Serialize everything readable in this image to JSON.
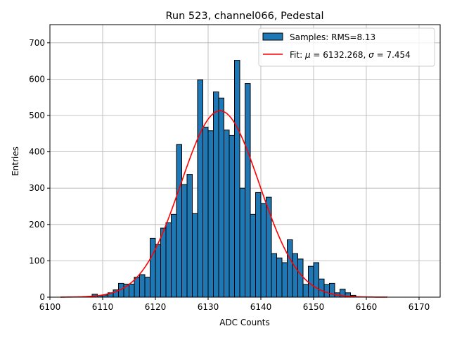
{
  "chart_data": {
    "type": "bar",
    "title": "Run 523, channel066, Pedestal",
    "xlabel": "ADC Counts",
    "ylabel": "Entries",
    "xlim": [
      6100,
      6174
    ],
    "ylim": [
      0,
      750
    ],
    "xticks": [
      6100,
      6110,
      6120,
      6130,
      6140,
      6150,
      6160,
      6170
    ],
    "yticks": [
      0,
      100,
      200,
      300,
      400,
      500,
      600,
      700
    ],
    "grid": true,
    "legend_loc": "top-right",
    "bin_width": 1,
    "histogram": {
      "name": "Samples: RMS=8.13",
      "color": "#1f77b4",
      "edgecolor": "#000000",
      "bins": [
        6108,
        6109,
        6110,
        6111,
        6112,
        6113,
        6114,
        6115,
        6116,
        6117,
        6118,
        6119,
        6120,
        6121,
        6122,
        6123,
        6124,
        6125,
        6126,
        6127,
        6128,
        6129,
        6130,
        6131,
        6132,
        6133,
        6134,
        6135,
        6136,
        6137,
        6138,
        6139,
        6140,
        6141,
        6142,
        6143,
        6144,
        6145,
        6146,
        6147,
        6148,
        6149,
        6150,
        6151,
        6152,
        6153,
        6154,
        6155,
        6156,
        6157
      ],
      "values": [
        8,
        4,
        6,
        12,
        20,
        38,
        36,
        36,
        55,
        62,
        55,
        162,
        145,
        190,
        205,
        228,
        420,
        310,
        338,
        230,
        598,
        468,
        458,
        565,
        548,
        460,
        445,
        652,
        300,
        588,
        228,
        288,
        258,
        275,
        120,
        108,
        95,
        158,
        120,
        105,
        35,
        85,
        95,
        50,
        35,
        38,
        12,
        22,
        12,
        5
      ]
    },
    "fit": {
      "name": "Fit: μ = 6132.268, σ = 7.454",
      "label_prefix": "Fit: ",
      "mu_symbol": "μ",
      "mu_text": " = 6132.268, ",
      "sigma_symbol": "σ",
      "sigma_text": " = 7.454",
      "color": "#ff0000",
      "mu": 6132.268,
      "sigma": 7.454,
      "amplitude": 513,
      "x_range": [
        6102,
        6164
      ]
    }
  }
}
